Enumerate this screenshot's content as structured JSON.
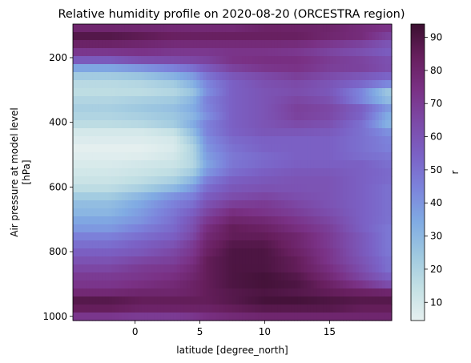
{
  "chart_data": {
    "type": "heatmap",
    "title": "Relative humidity profile on 2020-08-20 (ORCESTRA region)",
    "xlabel": "latitude [degree_north]",
    "ylabel_lines": [
      "Air pressure at model level",
      "[hPa]"
    ],
    "colorbar_label": "r",
    "xlim": [
      -4.8,
      19.8
    ],
    "ylim": [
      1013,
      96
    ],
    "y_inverted": true,
    "x_ticks": [
      0,
      5,
      10,
      15
    ],
    "x_tick_labels": [
      "0",
      "5",
      "10",
      "15"
    ],
    "y_ticks": [
      200,
      400,
      600,
      800,
      1000
    ],
    "y_tick_labels": [
      "200",
      "400",
      "600",
      "800",
      "1000"
    ],
    "colorbar_range": [
      4.5,
      94
    ],
    "colorbar_ticks": [
      10,
      20,
      30,
      40,
      50,
      60,
      70,
      80,
      90
    ],
    "colorbar_tick_labels": [
      "10",
      "20",
      "30",
      "40",
      "50",
      "60",
      "70",
      "80",
      "90"
    ],
    "colormap": [
      "#e6f0f0",
      "#c3e0e4",
      "#9ec8e0",
      "#80abe3",
      "#7c84dc",
      "#7b62c6",
      "#7c4aa8",
      "#7a3185",
      "#671f5e",
      "#3b0f30"
    ],
    "latitudes": [
      -4.5,
      -2,
      0.5,
      3,
      4.5,
      5.5,
      7.5,
      10,
      12.5,
      15,
      17.5,
      19.5
    ],
    "pressure_levels": [
      100,
      125,
      150,
      175,
      200,
      225,
      250,
      275,
      300,
      325,
      350,
      375,
      400,
      425,
      450,
      475,
      500,
      525,
      550,
      575,
      600,
      625,
      650,
      675,
      700,
      725,
      750,
      775,
      800,
      825,
      850,
      875,
      900,
      925,
      950,
      975,
      1000
    ],
    "values": [
      [
        75,
        75,
        75,
        75,
        75,
        75,
        75,
        80,
        80,
        80,
        75,
        75
      ],
      [
        90,
        90,
        88,
        85,
        85,
        85,
        85,
        85,
        85,
        82,
        80,
        70
      ],
      [
        85,
        85,
        82,
        80,
        80,
        80,
        80,
        80,
        80,
        75,
        70,
        62
      ],
      [
        75,
        75,
        75,
        72,
        72,
        72,
        72,
        72,
        70,
        65,
        60,
        55
      ],
      [
        65,
        65,
        70,
        70,
        70,
        70,
        75,
        75,
        75,
        70,
        65,
        60
      ],
      [
        40,
        40,
        45,
        50,
        55,
        60,
        70,
        75,
        75,
        70,
        70,
        65
      ],
      [
        25,
        25,
        28,
        35,
        40,
        50,
        60,
        65,
        70,
        65,
        60,
        55
      ],
      [
        18,
        18,
        20,
        25,
        35,
        45,
        55,
        62,
        65,
        60,
        55,
        50
      ],
      [
        15,
        15,
        15,
        18,
        25,
        40,
        55,
        60,
        62,
        58,
        45,
        25
      ],
      [
        18,
        18,
        20,
        22,
        30,
        45,
        55,
        60,
        65,
        60,
        40,
        25
      ],
      [
        22,
        22,
        25,
        28,
        35,
        45,
        55,
        60,
        68,
        65,
        55,
        40
      ],
      [
        20,
        20,
        22,
        25,
        30,
        40,
        55,
        60,
        68,
        65,
        55,
        35
      ],
      [
        18,
        18,
        20,
        25,
        35,
        45,
        55,
        60,
        65,
        62,
        50,
        30
      ],
      [
        10,
        10,
        10,
        15,
        30,
        45,
        55,
        60,
        60,
        58,
        50,
        40
      ],
      [
        8,
        8,
        8,
        10,
        25,
        42,
        52,
        55,
        55,
        55,
        50,
        45
      ],
      [
        5,
        5,
        5,
        8,
        20,
        40,
        50,
        55,
        55,
        55,
        50,
        45
      ],
      [
        6,
        6,
        6,
        10,
        20,
        38,
        48,
        52,
        55,
        55,
        50,
        48
      ],
      [
        8,
        8,
        10,
        12,
        18,
        35,
        48,
        52,
        55,
        55,
        55,
        50
      ],
      [
        10,
        10,
        12,
        15,
        22,
        38,
        50,
        55,
        58,
        58,
        55,
        52
      ],
      [
        12,
        12,
        15,
        20,
        30,
        45,
        55,
        58,
        60,
        60,
        55,
        52
      ],
      [
        15,
        15,
        20,
        28,
        38,
        50,
        58,
        60,
        60,
        60,
        55,
        50
      ],
      [
        22,
        22,
        30,
        40,
        45,
        55,
        62,
        65,
        62,
        60,
        55,
        50
      ],
      [
        28,
        28,
        35,
        45,
        50,
        60,
        68,
        70,
        65,
        60,
        55,
        50
      ],
      [
        30,
        30,
        38,
        48,
        55,
        65,
        75,
        72,
        68,
        62,
        55,
        50
      ],
      [
        35,
        35,
        40,
        50,
        60,
        70,
        80,
        78,
        72,
        65,
        55,
        50
      ],
      [
        38,
        38,
        45,
        52,
        62,
        75,
        85,
        82,
        75,
        68,
        55,
        48
      ],
      [
        45,
        45,
        50,
        55,
        65,
        78,
        85,
        85,
        80,
        70,
        58,
        48
      ],
      [
        50,
        50,
        55,
        60,
        70,
        80,
        88,
        88,
        80,
        70,
        58,
        48
      ],
      [
        55,
        55,
        58,
        65,
        72,
        82,
        90,
        90,
        82,
        72,
        58,
        48
      ],
      [
        60,
        60,
        65,
        68,
        75,
        85,
        90,
        90,
        85,
        72,
        60,
        50
      ],
      [
        65,
        65,
        70,
        72,
        78,
        85,
        90,
        90,
        85,
        75,
        62,
        50
      ],
      [
        70,
        70,
        72,
        75,
        80,
        85,
        90,
        92,
        88,
        78,
        65,
        55
      ],
      [
        72,
        72,
        75,
        78,
        82,
        85,
        90,
        92,
        90,
        82,
        72,
        62
      ],
      [
        78,
        78,
        80,
        80,
        82,
        85,
        88,
        90,
        88,
        85,
        82,
        80
      ],
      [
        88,
        88,
        85,
        85,
        85,
        85,
        88,
        92,
        92,
        90,
        88,
        88
      ],
      [
        85,
        85,
        82,
        82,
        82,
        82,
        85,
        88,
        88,
        88,
        85,
        85
      ],
      [
        72,
        72,
        70,
        70,
        72,
        75,
        78,
        80,
        80,
        80,
        80,
        80
      ]
    ]
  }
}
